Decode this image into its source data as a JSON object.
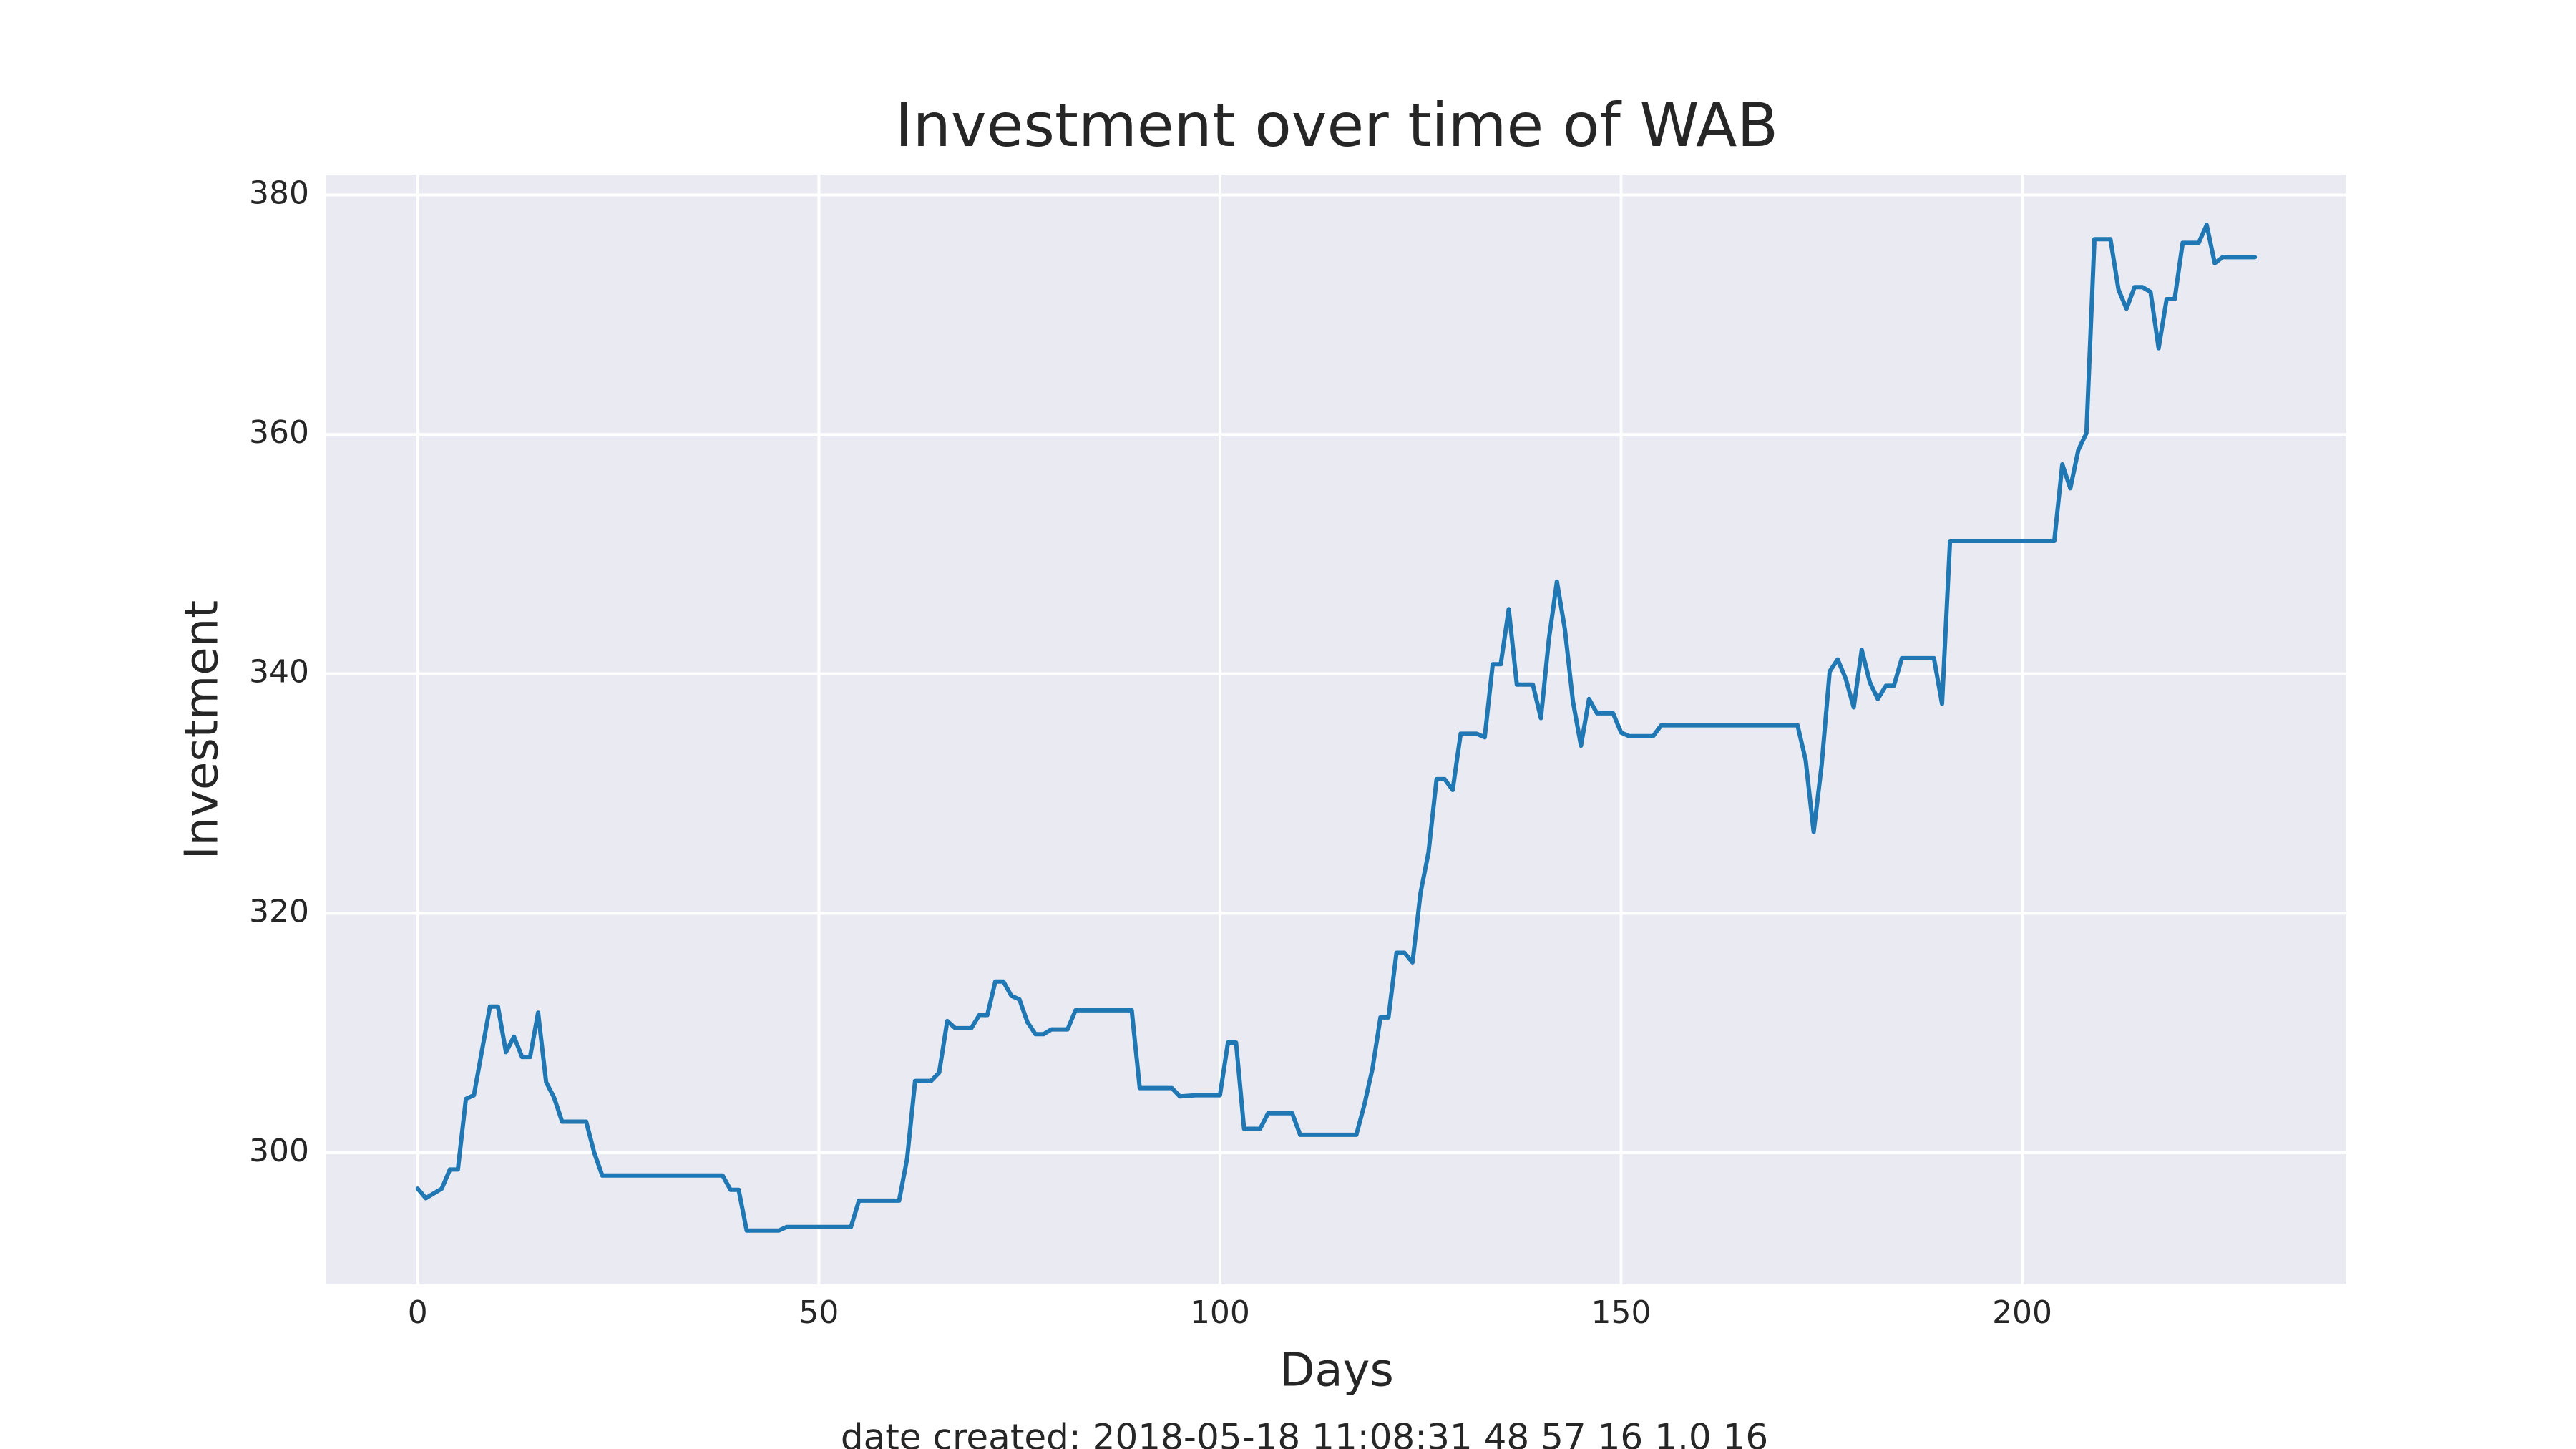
{
  "chart_data": {
    "type": "line",
    "title": "Investment over time of WAB",
    "x_label": "Days",
    "y_label": "Investment",
    "footnote": "date created: 2018-05-18 11:08:31 48 57 16 1.0 16",
    "color": "#1f77b4",
    "grid": true,
    "xlim": [
      -11.4,
      240.4
    ],
    "ylim": [
      289.0,
      381.7
    ],
    "xticks": [
      0,
      50,
      100,
      150,
      200
    ],
    "yticks": [
      300,
      320,
      340,
      360,
      380
    ],
    "x": [
      0,
      1,
      3,
      4,
      5,
      6,
      7,
      8,
      9,
      10,
      11,
      12,
      13,
      14,
      15,
      16,
      17,
      18,
      21,
      22,
      23,
      38,
      39,
      40,
      41,
      45,
      46,
      54,
      55,
      60,
      61,
      62,
      64,
      65,
      66,
      67,
      69,
      70,
      71,
      72,
      73,
      74,
      75,
      76,
      77,
      78,
      79,
      81,
      82,
      89,
      90,
      94,
      95,
      97,
      100,
      101,
      102,
      103,
      105,
      106,
      109,
      110,
      117,
      118,
      119,
      120,
      121,
      122,
      123,
      124,
      125,
      126,
      127,
      128,
      129,
      130,
      132,
      133,
      134,
      135,
      136,
      137,
      139,
      140,
      141,
      142,
      143,
      144,
      145,
      146,
      147,
      149,
      150,
      151,
      154,
      155,
      172,
      173,
      174,
      175,
      176,
      177,
      178,
      179,
      180,
      181,
      182,
      183,
      184,
      185,
      189,
      190,
      191,
      204,
      205,
      206,
      207,
      208,
      209,
      211,
      212,
      213,
      214,
      215,
      216,
      217,
      218,
      219,
      220,
      222,
      223,
      224,
      225,
      229
    ],
    "values": [
      297.0,
      296.2,
      297.0,
      298.6,
      298.6,
      304.5,
      304.8,
      308.5,
      312.2,
      312.2,
      308.4,
      309.7,
      308.0,
      308.0,
      311.7,
      305.9,
      304.6,
      302.6,
      302.6,
      300.0,
      298.1,
      298.1,
      296.9,
      296.9,
      293.5,
      293.5,
      293.8,
      293.8,
      296.0,
      296.0,
      299.5,
      306.0,
      306.0,
      306.7,
      311.0,
      310.4,
      310.4,
      311.5,
      311.5,
      314.3,
      314.3,
      313.1,
      312.8,
      310.9,
      309.9,
      309.9,
      310.3,
      310.3,
      311.9,
      311.9,
      305.4,
      305.4,
      304.7,
      304.8,
      304.8,
      309.2,
      309.2,
      302.0,
      302.0,
      303.3,
      303.3,
      301.5,
      301.5,
      304.0,
      307.0,
      311.3,
      311.3,
      316.7,
      316.7,
      315.9,
      321.7,
      325.1,
      331.2,
      331.2,
      330.3,
      335.0,
      335.0,
      334.7,
      340.8,
      340.8,
      345.4,
      339.1,
      339.1,
      336.3,
      342.9,
      347.7,
      343.7,
      337.7,
      334.0,
      337.9,
      336.7,
      336.7,
      335.1,
      334.8,
      334.8,
      335.7,
      335.7,
      332.8,
      326.8,
      332.4,
      340.2,
      341.2,
      339.6,
      337.2,
      342.0,
      339.3,
      337.9,
      339.0,
      339.0,
      341.3,
      341.3,
      337.5,
      351.1,
      351.1,
      357.5,
      355.5,
      358.7,
      360.1,
      376.3,
      376.3,
      372.1,
      370.5,
      372.3,
      372.3,
      371.9,
      367.2,
      371.3,
      371.3,
      376.0,
      376.0,
      377.5,
      374.3,
      374.8,
      374.8
    ]
  }
}
